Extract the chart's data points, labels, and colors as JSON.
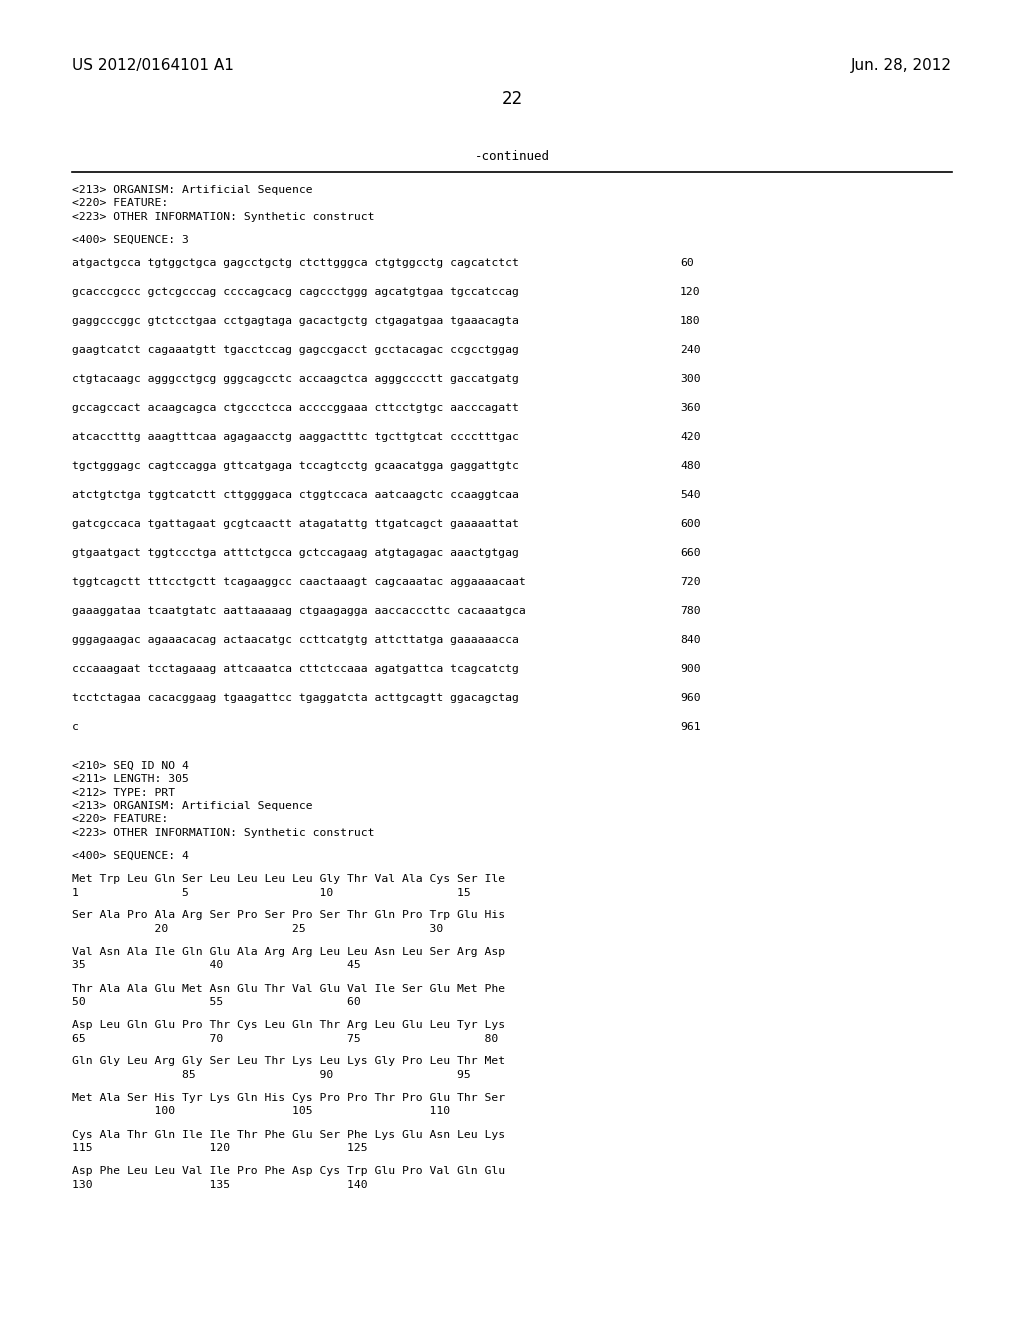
{
  "background_color": "#ffffff",
  "header_left": "US 2012/0164101 A1",
  "header_right": "Jun. 28, 2012",
  "page_number": "22",
  "continued_text": "-continued",
  "body_lines": [
    {
      "text": "<213> ORGANISM: Artificial Sequence",
      "type": "tag"
    },
    {
      "text": "<220> FEATURE:",
      "type": "tag"
    },
    {
      "text": "<223> OTHER INFORMATION: Synthetic construct",
      "type": "tag"
    },
    {
      "text": "",
      "type": "blank"
    },
    {
      "text": "<400> SEQUENCE: 3",
      "type": "tag"
    },
    {
      "text": "",
      "type": "blank"
    },
    {
      "text": "atgactgcca tgtggctgca gagcctgctg ctcttgggca ctgtggcctg cagcatctct",
      "type": "seq",
      "num": "60"
    },
    {
      "text": "",
      "type": "blank"
    },
    {
      "text": "gcacccgccc gctcgcccag ccccagcacg cagccctggg agcatgtgaa tgccatccag",
      "type": "seq",
      "num": "120"
    },
    {
      "text": "",
      "type": "blank"
    },
    {
      "text": "gaggcccggc gtctcctgaa cctgagtaga gacactgctg ctgagatgaa tgaaacagta",
      "type": "seq",
      "num": "180"
    },
    {
      "text": "",
      "type": "blank"
    },
    {
      "text": "gaagtcatct cagaaatgtt tgacctccag gagccgacct gcctacagac ccgcctggag",
      "type": "seq",
      "num": "240"
    },
    {
      "text": "",
      "type": "blank"
    },
    {
      "text": "ctgtacaagc agggcctgcg gggcagcctc accaagctca agggcccctt gaccatgatg",
      "type": "seq",
      "num": "300"
    },
    {
      "text": "",
      "type": "blank"
    },
    {
      "text": "gccagccact acaagcagca ctgccctcca accccggaaa cttcctgtgc aacccagatt",
      "type": "seq",
      "num": "360"
    },
    {
      "text": "",
      "type": "blank"
    },
    {
      "text": "atcacctttg aaagtttcaa agagaacctg aaggactttc tgcttgtcat cccctttgac",
      "type": "seq",
      "num": "420"
    },
    {
      "text": "",
      "type": "blank"
    },
    {
      "text": "tgctgggagc cagtccagga gttcatgaga tccagtcctg gcaacatgga gaggattgtc",
      "type": "seq",
      "num": "480"
    },
    {
      "text": "",
      "type": "blank"
    },
    {
      "text": "atctgtctga tggtcatctt cttggggaca ctggtccaca aatcaagctc ccaaggtcaa",
      "type": "seq",
      "num": "540"
    },
    {
      "text": "",
      "type": "blank"
    },
    {
      "text": "gatcgccaca tgattagaat gcgtcaactt atagatattg ttgatcagct gaaaaattat",
      "type": "seq",
      "num": "600"
    },
    {
      "text": "",
      "type": "blank"
    },
    {
      "text": "gtgaatgact tggtccctga atttctgcca gctccagaag atgtagagac aaactgtgag",
      "type": "seq",
      "num": "660"
    },
    {
      "text": "",
      "type": "blank"
    },
    {
      "text": "tggtcagctt tttcctgctt tcagaaggcc caactaaagt cagcaaatac aggaaaacaat",
      "type": "seq",
      "num": "720"
    },
    {
      "text": "",
      "type": "blank"
    },
    {
      "text": "gaaaggataa tcaatgtatc aattaaaaag ctgaagagga aaccacccttc cacaaatgca",
      "type": "seq",
      "num": "780"
    },
    {
      "text": "",
      "type": "blank"
    },
    {
      "text": "gggagaagac agaaacacag actaacatgc ccttcatgtg attcttatga gaaaaaacca",
      "type": "seq",
      "num": "840"
    },
    {
      "text": "",
      "type": "blank"
    },
    {
      "text": "cccaaagaat tcctagaaag attcaaatca cttctccaaa agatgattca tcagcatctg",
      "type": "seq",
      "num": "900"
    },
    {
      "text": "",
      "type": "blank"
    },
    {
      "text": "tcctctagaa cacacggaag tgaagattcc tgaggatcta acttgcagtt ggacagctag",
      "type": "seq",
      "num": "960"
    },
    {
      "text": "",
      "type": "blank"
    },
    {
      "text": "c",
      "type": "seq",
      "num": "961"
    },
    {
      "text": "",
      "type": "blank"
    },
    {
      "text": "",
      "type": "blank"
    },
    {
      "text": "<210> SEQ ID NO 4",
      "type": "tag"
    },
    {
      "text": "<211> LENGTH: 305",
      "type": "tag"
    },
    {
      "text": "<212> TYPE: PRT",
      "type": "tag"
    },
    {
      "text": "<213> ORGANISM: Artificial Sequence",
      "type": "tag"
    },
    {
      "text": "<220> FEATURE:",
      "type": "tag"
    },
    {
      "text": "<223> OTHER INFORMATION: Synthetic construct",
      "type": "tag"
    },
    {
      "text": "",
      "type": "blank"
    },
    {
      "text": "<400> SEQUENCE: 4",
      "type": "tag"
    },
    {
      "text": "",
      "type": "blank"
    },
    {
      "text": "Met Trp Leu Gln Ser Leu Leu Leu Leu Gly Thr Val Ala Cys Ser Ile",
      "type": "aa"
    },
    {
      "text": "1               5                   10                  15",
      "type": "aa"
    },
    {
      "text": "",
      "type": "blank"
    },
    {
      "text": "Ser Ala Pro Ala Arg Ser Pro Ser Pro Ser Thr Gln Pro Trp Glu His",
      "type": "aa"
    },
    {
      "text": "            20                  25                  30",
      "type": "aa"
    },
    {
      "text": "",
      "type": "blank"
    },
    {
      "text": "Val Asn Ala Ile Gln Glu Ala Arg Arg Leu Leu Asn Leu Ser Arg Asp",
      "type": "aa"
    },
    {
      "text": "35                  40                  45",
      "type": "aa"
    },
    {
      "text": "",
      "type": "blank"
    },
    {
      "text": "Thr Ala Ala Glu Met Asn Glu Thr Val Glu Val Ile Ser Glu Met Phe",
      "type": "aa"
    },
    {
      "text": "50                  55                  60",
      "type": "aa"
    },
    {
      "text": "",
      "type": "blank"
    },
    {
      "text": "Asp Leu Gln Glu Pro Thr Cys Leu Gln Thr Arg Leu Glu Leu Tyr Lys",
      "type": "aa"
    },
    {
      "text": "65                  70                  75                  80",
      "type": "aa"
    },
    {
      "text": "",
      "type": "blank"
    },
    {
      "text": "Gln Gly Leu Arg Gly Ser Leu Thr Lys Leu Lys Gly Pro Leu Thr Met",
      "type": "aa"
    },
    {
      "text": "                85                  90                  95",
      "type": "aa"
    },
    {
      "text": "",
      "type": "blank"
    },
    {
      "text": "Met Ala Ser His Tyr Lys Gln His Cys Pro Pro Thr Pro Glu Thr Ser",
      "type": "aa"
    },
    {
      "text": "            100                 105                 110",
      "type": "aa"
    },
    {
      "text": "",
      "type": "blank"
    },
    {
      "text": "Cys Ala Thr Gln Ile Ile Thr Phe Glu Ser Phe Lys Glu Asn Leu Lys",
      "type": "aa"
    },
    {
      "text": "115                 120                 125",
      "type": "aa"
    },
    {
      "text": "",
      "type": "blank"
    },
    {
      "text": "Asp Phe Leu Leu Val Ile Pro Phe Asp Cys Trp Glu Pro Val Gln Glu",
      "type": "aa"
    },
    {
      "text": "130                 135                 140",
      "type": "aa"
    }
  ]
}
